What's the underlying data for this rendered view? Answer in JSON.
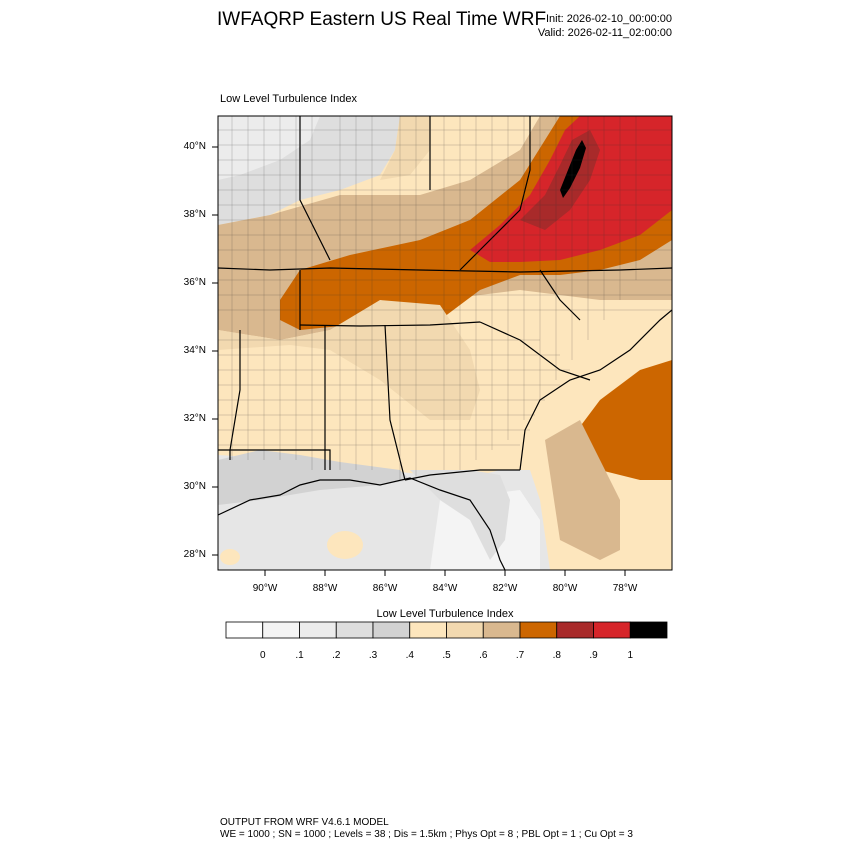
{
  "header": {
    "title": "IWFAQRP Eastern US Real Time WRF",
    "init": "Init: 2026-02-10_00:00:00",
    "valid": "Valid: 2026-02-11_02:00:00"
  },
  "map": {
    "label": "Low Level Turbulence Index",
    "lat_labels": [
      "40°N",
      "38°N",
      "36°N",
      "34°N",
      "32°N",
      "30°N",
      "28°N"
    ],
    "lon_labels": [
      "90°W",
      "88°W",
      "86°W",
      "84°W",
      "82°W",
      "80°W",
      "78°W"
    ]
  },
  "colorbar": {
    "title": "Low Level Turbulence Index",
    "colors": [
      "#ffffff",
      "#f4f4f4",
      "#ececec",
      "#dedede",
      "#d2d2d2",
      "#fde6bd",
      "#f2d9b0",
      "#d9b88f",
      "#cc6600",
      "#a82a2a",
      "#d6252a",
      "#000000"
    ],
    "labels": [
      "0",
      ".1",
      ".2",
      ".3",
      ".4",
      ".5",
      ".6",
      ".7",
      ".8",
      ".9",
      "1"
    ]
  },
  "footer": {
    "line1": "OUTPUT FROM WRF V4.6.1 MODEL",
    "line2": "WE = 1000 ; SN = 1000 ; Levels = 38 ; Dis = 1.5km ; Phys Opt = 8 ; PBL Opt = 1 ; Cu Opt = 3"
  }
}
